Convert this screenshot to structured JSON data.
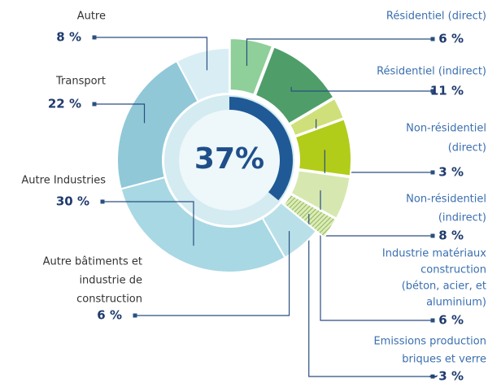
{
  "chart_data": {
    "type": "pie",
    "center_label": "37%",
    "categories": [
      [
        "Résidentiel (direct)"
      ],
      [
        "Résidentiel (indirect)"
      ],
      [
        "Non-résidentiel",
        "(direct)"
      ],
      [
        "Non-résidentiel",
        "(indirect)"
      ],
      [
        "Industrie matériaux",
        "construction",
        "(béton, acier, et",
        "aluminium)"
      ],
      [
        "Emissions production",
        "briques et verre"
      ],
      [
        "Autre bâtiments et",
        "industrie de",
        "construction"
      ],
      [
        "Autre Industries"
      ],
      [
        "Transport"
      ],
      [
        "Autre"
      ]
    ],
    "values": [
      6,
      11,
      3,
      8,
      6,
      3,
      6,
      30,
      22,
      8
    ],
    "value_labels": [
      "6 %",
      "11 %",
      "3 %",
      "8 %",
      "6 %",
      "~3 %",
      "6 %",
      "30 %",
      "22 %",
      "8 %"
    ],
    "colors": [
      "#8fcf9a",
      "#4f9e6a",
      "#cfe07a",
      "#b2cc1a",
      "#d6e8b0",
      "#a8c878",
      "#b9e0e8",
      "#a8d8e3",
      "#90c8d8",
      "#d8eef4"
    ]
  }
}
